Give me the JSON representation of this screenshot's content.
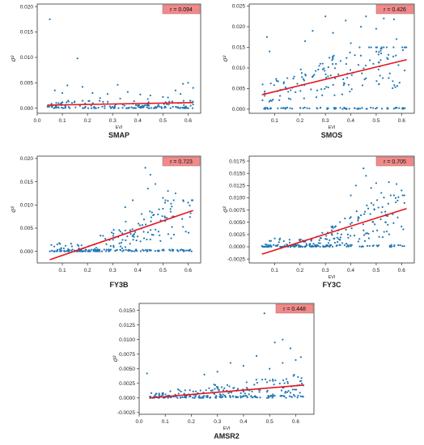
{
  "chart_data": [
    {
      "type": "scatter",
      "title": "SMAP",
      "xlabel": "EVI",
      "ylabel": "σ²",
      "annotation": "r = 0.094",
      "xlim": [
        0.0,
        0.65
      ],
      "ylim": [
        -0.001,
        0.0205
      ],
      "x_ticks": [
        0.0,
        0.1,
        0.2,
        0.3,
        0.4,
        0.5,
        0.6
      ],
      "x_tick_labels": [
        "0.0",
        "0.1",
        "0.2",
        "0.3",
        "0.4",
        "0.5",
        "0.6"
      ],
      "y_ticks": [
        0.0,
        0.005,
        0.01,
        0.015,
        0.02
      ],
      "y_tick_labels": [
        "0.000",
        "0.005",
        "0.010",
        "0.015",
        "0.020"
      ],
      "series": [
        {
          "points": [
            [
              0.05,
              0.0175
            ],
            [
              0.16,
              0.0098
            ],
            [
              0.07,
              0.0035
            ],
            [
              0.1,
              0.003
            ],
            [
              0.12,
              0.0045
            ],
            [
              0.18,
              0.0042
            ],
            [
              0.22,
              0.003
            ],
            [
              0.28,
              0.0028
            ],
            [
              0.32,
              0.0046
            ],
            [
              0.36,
              0.0032
            ],
            [
              0.41,
              0.0027
            ],
            [
              0.45,
              0.0025
            ],
            [
              0.5,
              0.0022
            ],
            [
              0.55,
              0.0035
            ],
            [
              0.58,
              0.0048
            ],
            [
              0.6,
              0.005
            ],
            [
              0.62,
              0.004
            ],
            [
              0.57,
              0.0028
            ],
            [
              0.25,
              0.002
            ],
            [
              0.33,
              0.0019
            ],
            [
              0.44,
              0.0018
            ],
            [
              0.52,
              0.0021
            ]
          ],
          "bulk": {
            "x_range": [
              0.04,
              0.62
            ],
            "y_range": [
              0.0,
              0.0015
            ],
            "count": 170
          }
        }
      ],
      "fit_line": [
        [
          0.04,
          0.0006
        ],
        [
          0.62,
          0.0011
        ]
      ]
    },
    {
      "type": "scatter",
      "title": "SMOS",
      "xlabel": "EVI",
      "ylabel": "σ²",
      "annotation": "r = 0.426",
      "xlim": [
        0.0,
        0.65
      ],
      "ylim": [
        -0.001,
        0.0255
      ],
      "x_ticks": [
        0.1,
        0.2,
        0.3,
        0.4,
        0.5,
        0.6
      ],
      "x_tick_labels": [
        "0.1",
        "0.2",
        "0.3",
        "0.4",
        "0.5",
        "0.6"
      ],
      "y_ticks": [
        0.0,
        0.005,
        0.01,
        0.015,
        0.02,
        0.025
      ],
      "y_tick_labels": [
        "0.000",
        "0.005",
        "0.010",
        "0.015",
        "0.020",
        "0.025"
      ],
      "series": [
        {
          "points": [
            [
              0.3,
              0.0225
            ],
            [
              0.38,
              0.0215
            ],
            [
              0.46,
              0.0225
            ],
            [
              0.53,
              0.022
            ],
            [
              0.57,
              0.0218
            ],
            [
              0.44,
              0.02
            ],
            [
              0.5,
              0.0195
            ],
            [
              0.33,
              0.0185
            ],
            [
              0.25,
              0.019
            ],
            [
              0.08,
              0.014
            ],
            [
              0.07,
              0.0175
            ],
            [
              0.58,
              0.017
            ],
            [
              0.22,
              0.0165
            ],
            [
              0.4,
              0.016
            ],
            [
              0.48,
              0.015
            ]
          ],
          "bulk": {
            "x_range": [
              0.05,
              0.62
            ],
            "y_range": [
              0.0,
              0.015
            ],
            "trend": [
              [
                0.05,
                0.0035
              ],
              [
                0.62,
                0.012
              ]
            ],
            "count": 230
          }
        }
      ],
      "fit_line": [
        [
          0.05,
          0.0035
        ],
        [
          0.62,
          0.012
        ]
      ]
    },
    {
      "type": "scatter",
      "title": "FY3B",
      "xlabel": "",
      "ylabel": "σ²",
      "annotation": "r = 0.723",
      "xlim": [
        0.0,
        0.65
      ],
      "ylim": [
        -0.0025,
        0.0205
      ],
      "x_ticks": [
        0.1,
        0.2,
        0.3,
        0.4,
        0.5,
        0.6
      ],
      "x_tick_labels": [
        "0.1",
        "0.2",
        "0.3",
        "0.4",
        "0.5",
        "0.6"
      ],
      "y_ticks": [
        0.0,
        0.005,
        0.01,
        0.015,
        0.02
      ],
      "y_tick_labels": [
        "0.000",
        "0.005",
        "0.010",
        "0.015",
        "0.020"
      ],
      "series": [
        {
          "points": [
            [
              0.43,
              0.018
            ],
            [
              0.45,
              0.0165
            ],
            [
              0.47,
              0.0145
            ],
            [
              0.44,
              0.0135
            ],
            [
              0.52,
              0.013
            ],
            [
              0.55,
              0.0125
            ],
            [
              0.5,
              0.0115
            ],
            [
              0.58,
              0.011
            ],
            [
              0.38,
              0.011
            ],
            [
              0.6,
              0.0105
            ],
            [
              0.35,
              0.0095
            ]
          ],
          "bulk": {
            "x_range": [
              0.05,
              0.62
            ],
            "y_range": [
              0.0,
              0.011
            ],
            "trend": [
              [
                0.2,
                0.0
              ],
              [
                0.62,
                0.0085
              ]
            ],
            "count": 260
          }
        }
      ],
      "fit_line": [
        [
          0.05,
          -0.0018
        ],
        [
          0.62,
          0.0088
        ]
      ]
    },
    {
      "type": "scatter",
      "title": "FY3C",
      "xlabel": "EVI",
      "ylabel": "σ²",
      "annotation": "r = 0.705",
      "xlim": [
        0.0,
        0.65
      ],
      "ylim": [
        -0.0033,
        0.0185
      ],
      "x_ticks": [
        0.1,
        0.2,
        0.3,
        0.4,
        0.5,
        0.6
      ],
      "x_tick_labels": [
        "0.1",
        "0.2",
        "0.3",
        "0.4",
        "0.5",
        "0.6"
      ],
      "y_ticks": [
        -0.0025,
        0.0,
        0.0025,
        0.005,
        0.0075,
        0.01,
        0.0125,
        0.015,
        0.0175
      ],
      "y_tick_labels": [
        "-0.0025",
        "0.0000",
        "0.0025",
        "0.0050",
        "0.0075",
        "0.0100",
        "0.0125",
        "0.0150",
        "0.0175"
      ],
      "series": [
        {
          "points": [
            [
              0.45,
              0.016
            ],
            [
              0.46,
              0.0145
            ],
            [
              0.5,
              0.013
            ],
            [
              0.55,
              0.0132
            ],
            [
              0.58,
              0.0128
            ],
            [
              0.6,
              0.0115
            ],
            [
              0.42,
              0.0125
            ],
            [
              0.48,
              0.012
            ],
            [
              0.4,
              0.0105
            ],
            [
              0.52,
              0.011
            ],
            [
              0.57,
              0.0105
            ]
          ],
          "bulk": {
            "x_range": [
              0.05,
              0.62
            ],
            "y_range": [
              0.0,
              0.0105
            ],
            "trend": [
              [
                0.25,
                0.0
              ],
              [
                0.62,
                0.0078
              ]
            ],
            "count": 260
          }
        }
      ],
      "fit_line": [
        [
          0.05,
          -0.0015
        ],
        [
          0.62,
          0.0078
        ]
      ]
    },
    {
      "type": "scatter",
      "title": "AMSR2",
      "xlabel": "EVI",
      "ylabel": "σ²",
      "annotation": "r = 0.448",
      "xlim": [
        0.0,
        0.67
      ],
      "ylim": [
        -0.0028,
        0.0162
      ],
      "x_ticks": [
        0.0,
        0.1,
        0.2,
        0.3,
        0.4,
        0.5,
        0.6
      ],
      "x_tick_labels": [
        "0.0",
        "0.1",
        "0.2",
        "0.3",
        "0.4",
        "0.5",
        "0.6"
      ],
      "y_ticks": [
        -0.0025,
        0.0,
        0.0025,
        0.005,
        0.0075,
        0.01,
        0.0125,
        0.015
      ],
      "y_tick_labels": [
        "-0.0025",
        "0.0000",
        "0.0025",
        "0.0050",
        "0.0075",
        "0.0100",
        "0.0125",
        "0.0150"
      ],
      "series": [
        {
          "points": [
            [
              0.48,
              0.0145
            ],
            [
              0.52,
              0.0095
            ],
            [
              0.55,
              0.01
            ],
            [
              0.58,
              0.0085
            ],
            [
              0.62,
              0.007
            ],
            [
              0.6,
              0.0065
            ],
            [
              0.45,
              0.0072
            ],
            [
              0.35,
              0.006
            ],
            [
              0.4,
              0.0055
            ],
            [
              0.55,
              0.006
            ],
            [
              0.03,
              0.0042
            ],
            [
              0.5,
              0.005
            ],
            [
              0.3,
              0.0045
            ],
            [
              0.25,
              0.004
            ]
          ],
          "bulk": {
            "x_range": [
              0.04,
              0.63
            ],
            "y_range": [
              0.0,
              0.004
            ],
            "trend": [
              [
                0.04,
                0.0002
              ],
              [
                0.63,
                0.0022
              ]
            ],
            "count": 260
          }
        }
      ],
      "fit_line": [
        [
          0.04,
          0.0
        ],
        [
          0.63,
          0.0022
        ]
      ]
    }
  ],
  "colors": {
    "point": "#1f77b4",
    "fit_line": "#e8141c",
    "annotation_bg": "#f08a8a",
    "axis": "#333333",
    "text": "#222222"
  }
}
